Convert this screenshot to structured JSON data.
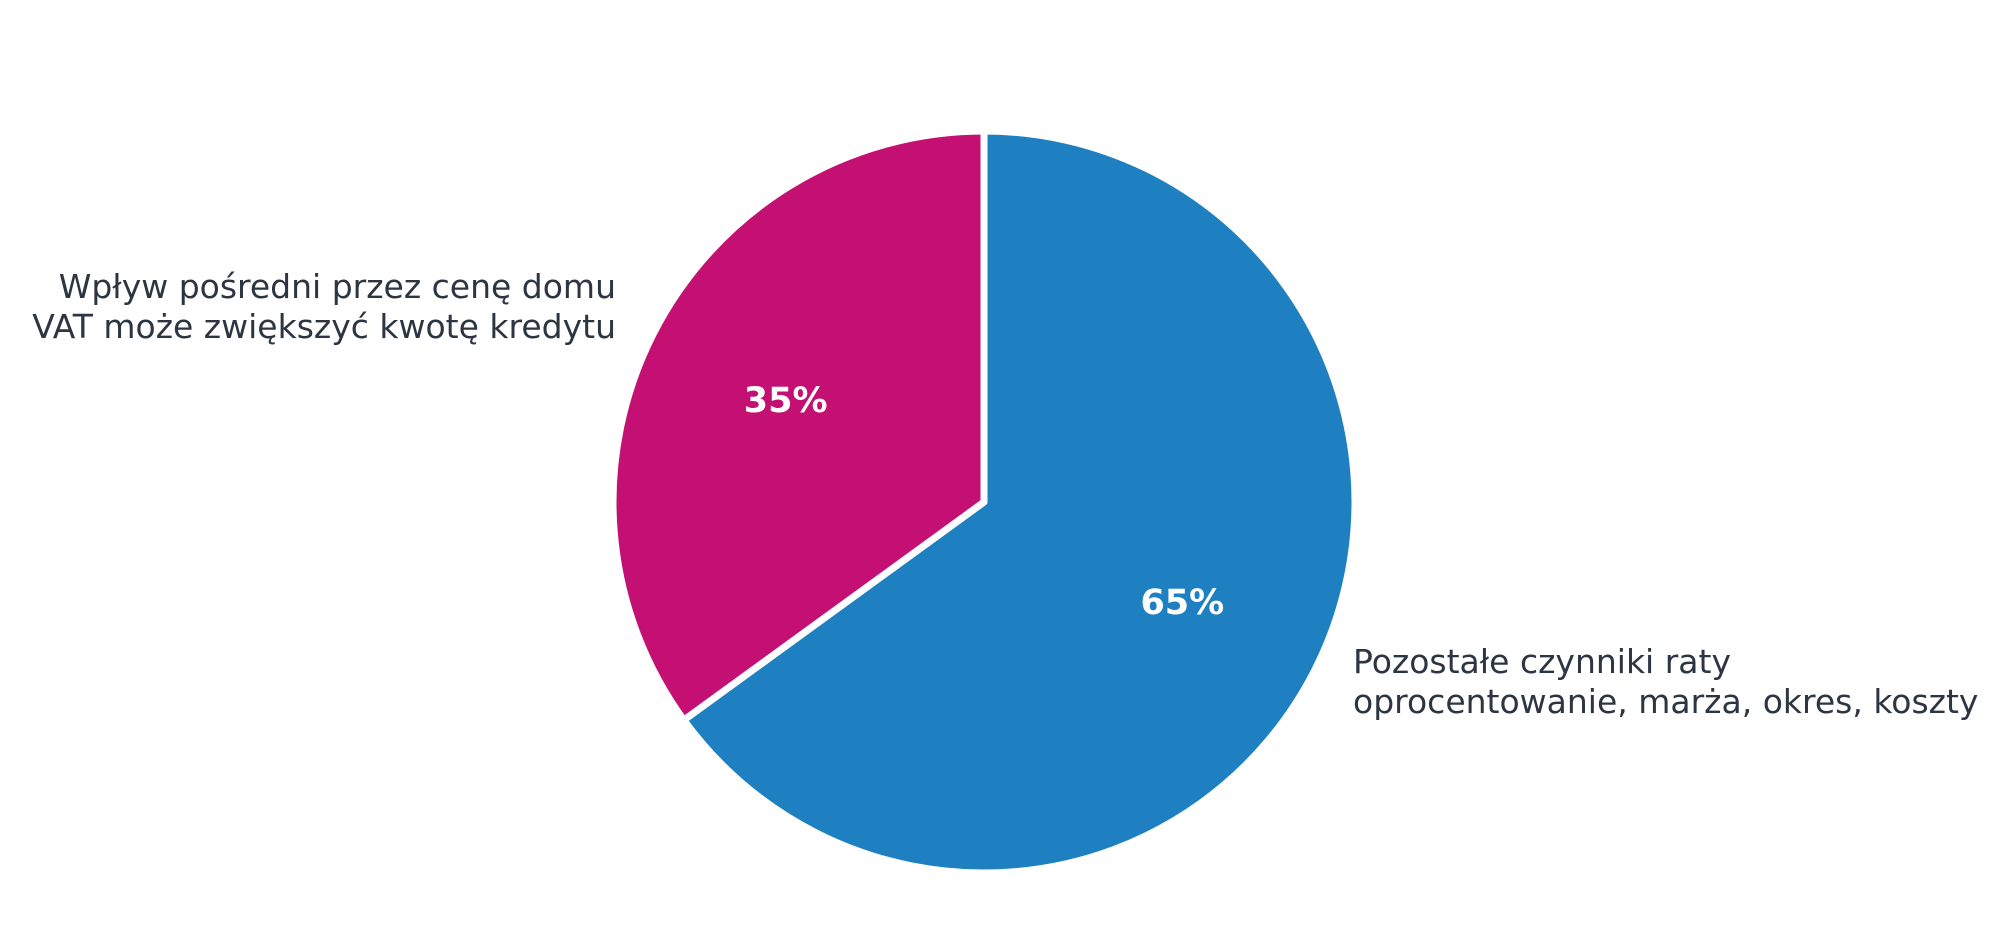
{
  "chart_data": {
    "type": "pie",
    "start_angle": "12 o'clock",
    "direction": "clockwise",
    "slices": [
      {
        "value": 65,
        "value_label": "65%",
        "label_lines": [
          "Pozostałe czynniki raty",
          "oprocentowanie, marża, okres, koszty"
        ],
        "color": "#1f80c1"
      },
      {
        "value": 35,
        "value_label": "35%",
        "label_lines": [
          "Wpływ pośredni przez cenę domu",
          "VAT może zwiększyć kwotę kredytu"
        ],
        "color": "#c41072"
      }
    ],
    "separator_color": "#ffffff"
  }
}
